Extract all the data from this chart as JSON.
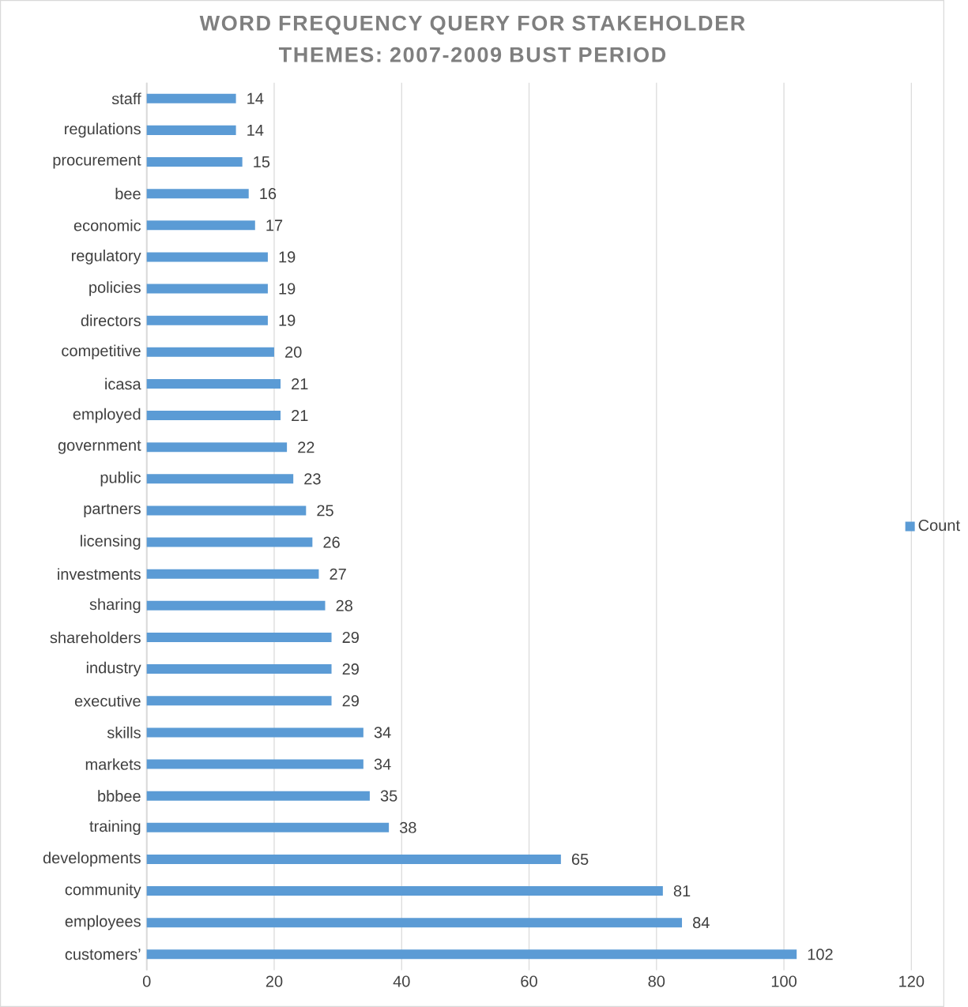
{
  "chart_data": {
    "type": "bar",
    "orientation": "horizontal",
    "title": "WORD FREQUENCY QUERY FOR STAKEHOLDER THEMES: 2007-2009 BUST PERIOD",
    "categories": [
      "staff",
      "regulations",
      "procurement",
      "bee",
      "economic",
      "regulatory",
      "policies",
      "directors",
      "competitive",
      "icasa",
      "employed",
      "government",
      "public",
      "partners",
      "licensing",
      "investments",
      "sharing",
      "shareholders",
      "industry",
      "executive",
      "skills",
      "markets",
      "bbbee",
      "training",
      "developments",
      "community",
      "employees",
      "customers’"
    ],
    "series": [
      {
        "name": "Count",
        "color": "#5b9bd5",
        "values": [
          14,
          14,
          15,
          16,
          17,
          19,
          19,
          19,
          20,
          21,
          21,
          22,
          23,
          25,
          26,
          27,
          28,
          29,
          29,
          29,
          34,
          34,
          35,
          38,
          65,
          81,
          84,
          102
        ]
      }
    ],
    "xlim": [
      0,
      120
    ],
    "xticks": [
      0,
      20,
      40,
      60,
      80,
      100,
      120
    ],
    "grid": "x",
    "legend": "right",
    "data_labels": true
  }
}
